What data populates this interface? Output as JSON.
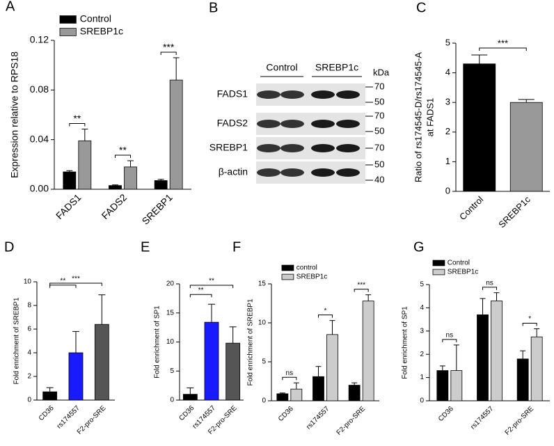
{
  "chart_data": [
    {
      "type": "bar",
      "panel": "A",
      "ylabel": [
        "Expression relative to RPS18"
      ],
      "categories": [
        "FADS1",
        "FADS2",
        "SREBP1"
      ],
      "series": [
        {
          "name": "Control",
          "color": "#000000",
          "values": [
            0.014,
            0.003,
            0.007
          ],
          "errors": [
            0.001,
            0.0005,
            0.001
          ]
        },
        {
          "name": "SREBP1c",
          "color": "#999999",
          "values": [
            0.039,
            0.018,
            0.088
          ],
          "errors": [
            0.0095,
            0.005,
            0.018
          ]
        }
      ],
      "annotations": [
        "**",
        "**",
        "***"
      ],
      "ylim": [
        0,
        0.12
      ],
      "yticks": [
        {
          "value": 0,
          "label": "0.00"
        },
        0.04,
        0.08,
        0.12
      ]
    },
    {
      "type": "bar",
      "panel": "C",
      "ylabel": [
        "Ratio of rs174545-D/rs174545-A",
        "at FADS1"
      ],
      "categories": [
        "Control",
        "SREBP1c"
      ],
      "values": [
        4.3,
        3.0
      ],
      "errors": [
        0.3,
        0.1
      ],
      "colors": [
        "#000000",
        "#999999"
      ],
      "annotations": [
        "***"
      ],
      "ylim": [
        0,
        5
      ],
      "yticks": [
        0,
        1,
        2,
        3,
        4,
        5
      ]
    },
    {
      "type": "bar",
      "panel": "D",
      "ylabel": [
        "Fold enrichment of SREBP1"
      ],
      "categories": [
        "CD36",
        "rs174557",
        "F2-pro-SRE"
      ],
      "values": [
        0.7,
        4.0,
        6.4
      ],
      "errors": [
        0.35,
        1.8,
        2.5
      ],
      "colors": [
        "#000000",
        "#1a1aff",
        "#555555"
      ],
      "annotations": [
        "**",
        "***"
      ],
      "ylim": [
        0,
        10
      ],
      "yticks": [
        0,
        2,
        4,
        6,
        8,
        10
      ]
    },
    {
      "type": "bar",
      "panel": "E",
      "ylabel": [
        "Fold enrichment of SP1"
      ],
      "categories": [
        "CD36",
        "rs174557",
        "F2-pro-SRE"
      ],
      "values": [
        1.0,
        13.4,
        9.8
      ],
      "errors": [
        1.1,
        3.1,
        2.8
      ],
      "colors": [
        "#000000",
        "#1a1aff",
        "#555555"
      ],
      "annotations": [
        "**",
        "**"
      ],
      "ylim": [
        0,
        20
      ],
      "yticks": [
        0,
        5,
        10,
        15,
        20
      ]
    },
    {
      "type": "bar",
      "panel": "F",
      "ylabel": [
        "Fold enrichment of SREBP1"
      ],
      "categories": [
        "CD36",
        "rs174557",
        "F2-pro-SRE"
      ],
      "series": [
        {
          "name": "control",
          "color": "#000000",
          "values": [
            0.9,
            3.1,
            2.0
          ],
          "errors": [
            0.1,
            1.3,
            0.3
          ]
        },
        {
          "name": "SREBP1c",
          "color": "#cccccc",
          "values": [
            1.5,
            8.5,
            12.8
          ],
          "errors": [
            0.8,
            1.8,
            0.8
          ]
        }
      ],
      "annotations": [
        "ns",
        "*",
        "***"
      ],
      "ylim": [
        0,
        15
      ],
      "yticks": [
        0,
        5,
        10,
        15
      ]
    },
    {
      "type": "bar",
      "panel": "G",
      "ylabel": [
        "Fold enrichment of SP1"
      ],
      "categories": [
        "CD36",
        "rs174557",
        "F2-pro-SRE"
      ],
      "series": [
        {
          "name": "Control",
          "color": "#000000",
          "values": [
            1.3,
            3.7,
            1.8
          ],
          "errors": [
            0.2,
            0.7,
            0.35
          ]
        },
        {
          "name": "SREBP1c",
          "color": "#cccccc",
          "values": [
            1.3,
            4.3,
            2.75
          ],
          "errors": [
            1.1,
            0.35,
            0.35
          ]
        }
      ],
      "annotations": [
        "ns",
        "ns",
        "*"
      ],
      "ylim": [
        0,
        5
      ],
      "yticks": [
        0,
        1,
        2,
        3,
        4,
        5
      ]
    }
  ],
  "blot": {
    "panel": "B",
    "groups": [
      "Control",
      "SREBP1c"
    ],
    "unit": "kDa",
    "rows": [
      {
        "label": "FADS1",
        "markers": [
          70,
          50
        ]
      },
      {
        "label": "FADS2",
        "markers": [
          70,
          50
        ]
      },
      {
        "label": "SREBP1",
        "markers": [
          70
        ]
      },
      {
        "label": "β-actin",
        "markers": [
          50,
          40
        ]
      }
    ]
  }
}
